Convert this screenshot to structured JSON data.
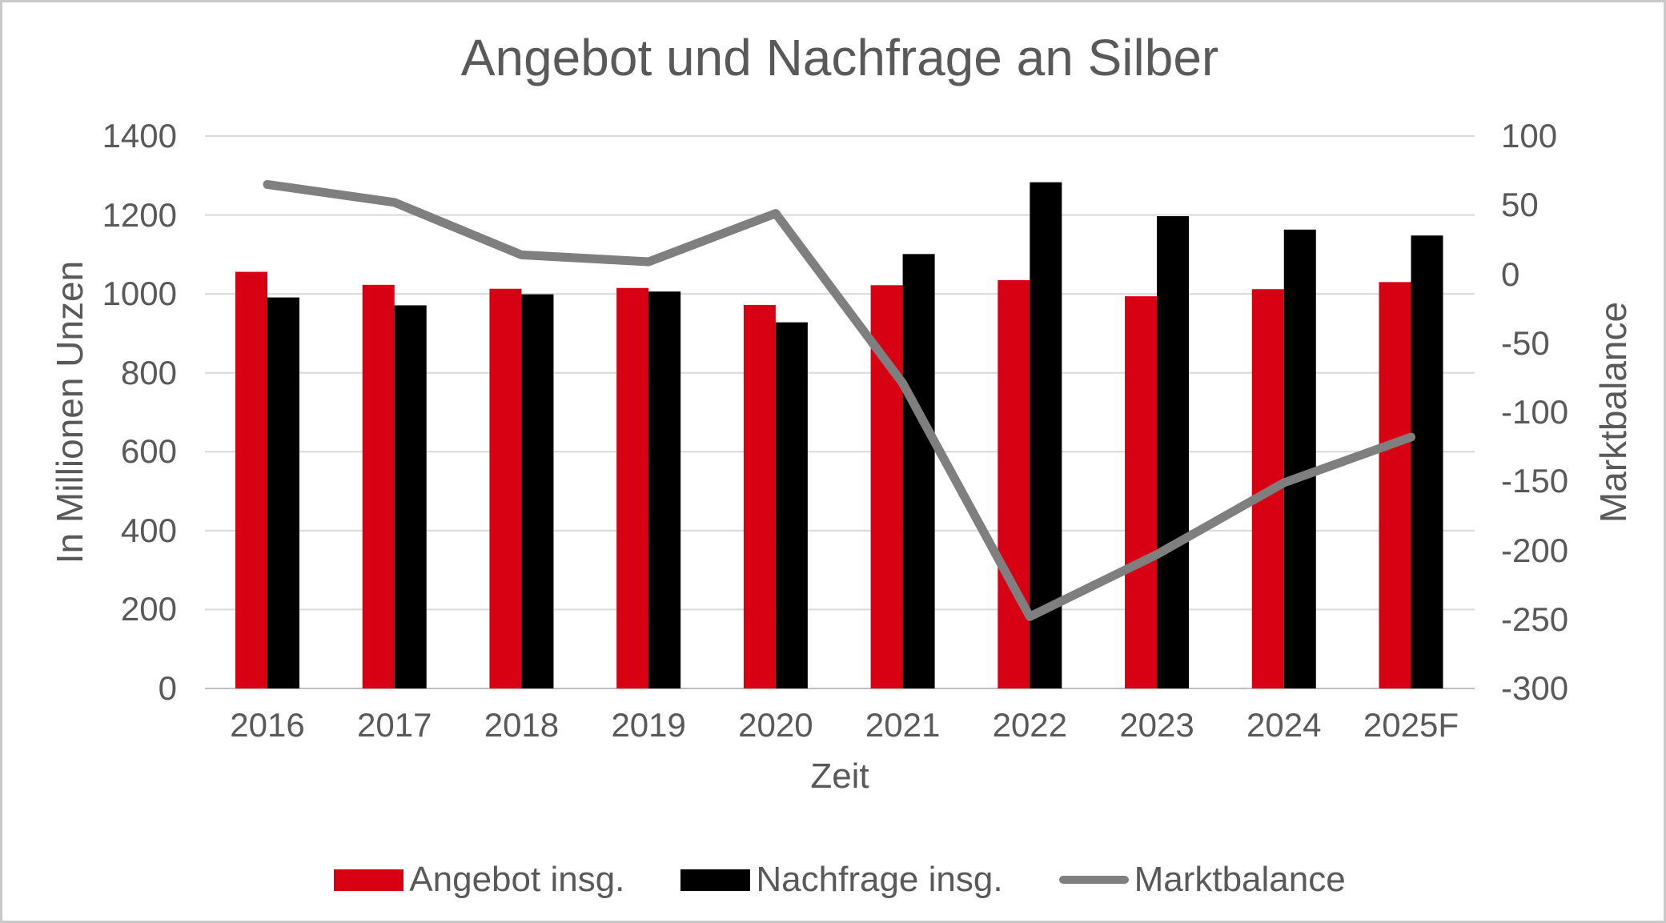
{
  "frame": {
    "background": "#FFFFFF",
    "border_color": "#C9C9C9"
  },
  "chart": {
    "title": "Angebot und Nachfrage an Silber",
    "left_axis": {
      "title": "In Millionen Unzen",
      "ticks": [
        1400,
        1200,
        1000,
        800,
        600,
        400,
        200,
        0
      ]
    },
    "right_axis": {
      "title": "Marktbalance",
      "ticks": [
        100,
        50,
        0,
        -50,
        -100,
        -150,
        -200,
        -250,
        -300
      ]
    },
    "x_axis": {
      "title": "Zeit"
    }
  },
  "chart_data": {
    "type": "combo",
    "title": "Angebot und Nachfrage an Silber",
    "xlabel": "Zeit",
    "ylabel_left": "In Millionen Unzen",
    "ylabel_right": "Marktbalance",
    "categories": [
      "2016",
      "2017",
      "2018",
      "2019",
      "2020",
      "2021",
      "2022",
      "2023",
      "2024",
      "2025F"
    ],
    "series": [
      {
        "name": "Angebot insg.",
        "type": "bar",
        "axis": "left",
        "color": "#D80013",
        "values": [
          1056,
          1023,
          1013,
          1015,
          972,
          1022,
          1035,
          994,
          1012,
          1030
        ]
      },
      {
        "name": "Nachfrage insg.",
        "type": "bar",
        "axis": "left",
        "color": "#000000",
        "values": [
          991,
          971,
          999,
          1006,
          928,
          1101,
          1283,
          1197,
          1163,
          1148
        ]
      },
      {
        "name": "Marktbalance",
        "type": "line",
        "axis": "right",
        "color": "#7F7F7F",
        "values": [
          65,
          52,
          14,
          9,
          44,
          -79,
          -248,
          -203,
          -151,
          -118
        ]
      }
    ],
    "left_ylim": [
      0,
      1400
    ],
    "right_ylim": [
      -300,
      100
    ],
    "grid": true,
    "legend_position": "bottom",
    "text_color": "#595959",
    "gridline_color": "#D9D9D9",
    "axis_line_color": "#BFBFBF"
  }
}
